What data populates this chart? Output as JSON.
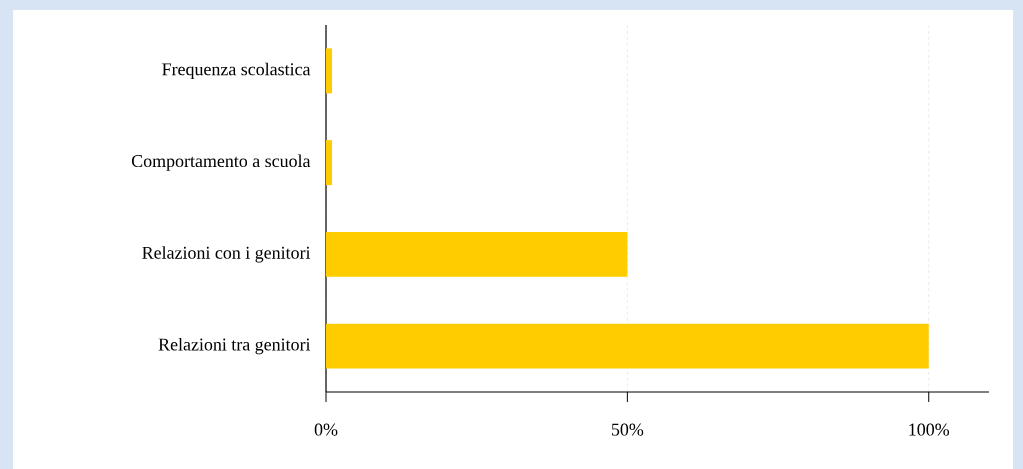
{
  "chart_data": {
    "type": "bar",
    "orientation": "horizontal",
    "categories": [
      "Frequenza scolastica",
      "Comportamento a scuola",
      "Relazioni con i genitori",
      "Relazioni tra genitori"
    ],
    "values": [
      1,
      1,
      50,
      100
    ],
    "color": "#ffcc00",
    "xlim": [
      0,
      110
    ],
    "xticks": [
      {
        "value": 0,
        "label": "0%"
      },
      {
        "value": 50,
        "label": "50%"
      },
      {
        "value": 100,
        "label": "100%"
      }
    ],
    "grid": "x"
  }
}
